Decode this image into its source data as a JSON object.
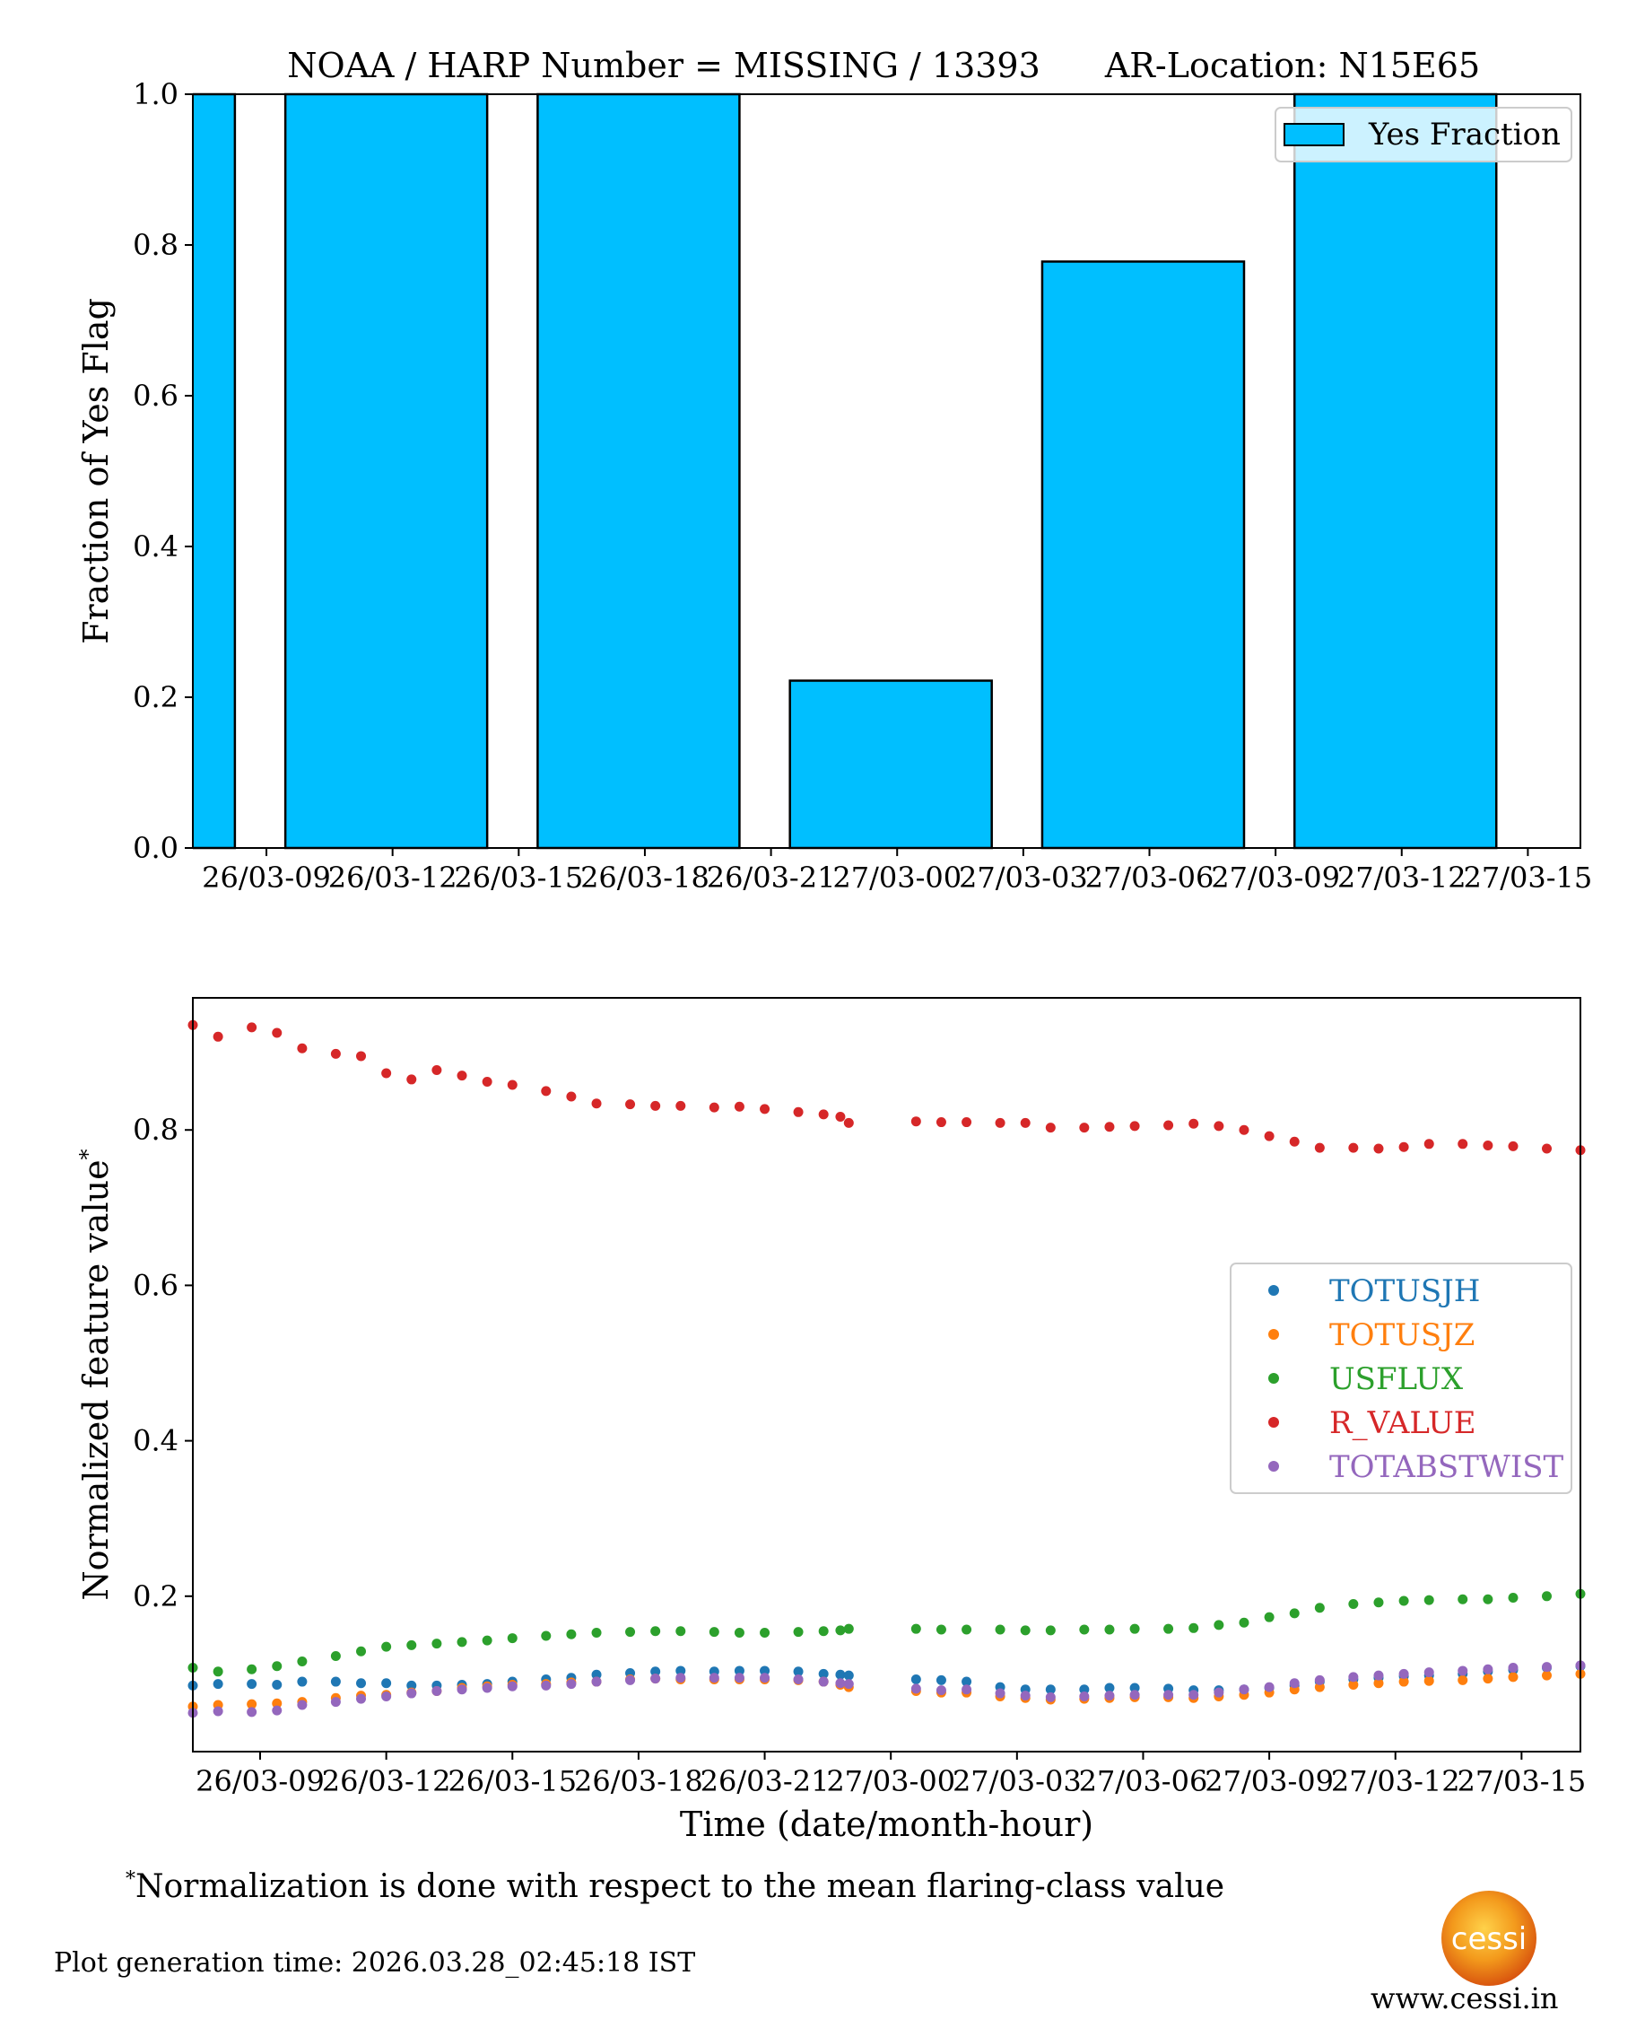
{
  "header": {
    "title_left": "NOAA / HARP Number = MISSING / 13393",
    "title_right": "AR-Location: N15E65"
  },
  "chart_data": [
    {
      "type": "bar",
      "ylabel": "Fraction of Yes Flag",
      "xlabel": "",
      "ylim": [
        0,
        1
      ],
      "xlim": [
        7.25,
        40.25
      ],
      "yticks": [
        "0.0",
        "0.2",
        "0.4",
        "0.6",
        "0.8",
        "1.0"
      ],
      "xticks": [
        {
          "hour": 9,
          "label": "26/03-09"
        },
        {
          "hour": 12,
          "label": "26/03-12"
        },
        {
          "hour": 15,
          "label": "26/03-15"
        },
        {
          "hour": 18,
          "label": "26/03-18"
        },
        {
          "hour": 21,
          "label": "26/03-21"
        },
        {
          "hour": 24,
          "label": "27/03-00"
        },
        {
          "hour": 27,
          "label": "27/03-03"
        },
        {
          "hour": 30,
          "label": "27/03-06"
        },
        {
          "hour": 33,
          "label": "27/03-09"
        },
        {
          "hour": 36,
          "label": "27/03-12"
        },
        {
          "hour": 39,
          "label": "27/03-15"
        }
      ],
      "bars": [
        {
          "start": 6.0,
          "end": 8.25,
          "value": 1.0
        },
        {
          "start": 9.45,
          "end": 14.25,
          "value": 1.0
        },
        {
          "start": 15.45,
          "end": 20.25,
          "value": 1.0
        },
        {
          "start": 21.45,
          "end": 26.25,
          "value": 0.222
        },
        {
          "start": 27.45,
          "end": 32.25,
          "value": 0.778
        },
        {
          "start": 33.45,
          "end": 38.25,
          "value": 1.0
        }
      ],
      "legend": {
        "label": "Yes Fraction",
        "position": "top-right"
      },
      "color": "#00bfff"
    },
    {
      "type": "scatter",
      "ylabel": "Normalized feature value",
      "ylabel_marker": "*",
      "xlabel": "Time (date/month-hour)",
      "ylim": [
        0.0,
        0.97
      ],
      "xlim": [
        7.4,
        40.4
      ],
      "yticks": [
        "0.2",
        "0.4",
        "0.6",
        "0.8"
      ],
      "xticks": [
        {
          "hour": 9,
          "label": "26/03-09"
        },
        {
          "hour": 12,
          "label": "26/03-12"
        },
        {
          "hour": 15,
          "label": "26/03-15"
        },
        {
          "hour": 18,
          "label": "26/03-18"
        },
        {
          "hour": 21,
          "label": "26/03-21"
        },
        {
          "hour": 24,
          "label": "27/03-00"
        },
        {
          "hour": 27,
          "label": "27/03-03"
        },
        {
          "hour": 30,
          "label": "27/03-06"
        },
        {
          "hour": 33,
          "label": "27/03-09"
        },
        {
          "hour": 36,
          "label": "27/03-12"
        },
        {
          "hour": 39,
          "label": "27/03-15"
        }
      ],
      "legend_position": "center-right",
      "x": [
        7.4,
        8.0,
        8.8,
        9.4,
        10.0,
        10.8,
        11.4,
        12.0,
        12.6,
        13.2,
        13.8,
        14.4,
        15.0,
        15.8,
        16.4,
        17.0,
        17.8,
        18.4,
        19.0,
        19.8,
        20.4,
        21.0,
        21.8,
        22.4,
        22.8,
        23.0,
        24.6,
        25.2,
        25.8,
        26.6,
        27.2,
        27.8,
        28.6,
        29.2,
        29.8,
        30.6,
        31.2,
        31.8,
        32.4,
        33.0,
        33.6,
        34.2,
        35.0,
        35.6,
        36.2,
        36.8,
        37.6,
        38.2,
        38.8,
        39.6,
        40.4
      ],
      "series": [
        {
          "name": "TOTUSJH",
          "color": "#1f77b4",
          "values": [
            0.085,
            0.087,
            0.087,
            0.086,
            0.09,
            0.09,
            0.088,
            0.088,
            0.085,
            0.085,
            0.086,
            0.087,
            0.09,
            0.093,
            0.095,
            0.099,
            0.101,
            0.103,
            0.104,
            0.103,
            0.104,
            0.104,
            0.103,
            0.1,
            0.099,
            0.098,
            0.093,
            0.092,
            0.09,
            0.083,
            0.08,
            0.08,
            0.08,
            0.082,
            0.082,
            0.081,
            0.079,
            0.079,
            0.08,
            0.082,
            0.085,
            0.09,
            0.093,
            0.095,
            0.097,
            0.098,
            0.1,
            0.103,
            0.105,
            0.108,
            0.11
          ]
        },
        {
          "name": "TOTUSJZ",
          "color": "#ff7f0e",
          "values": [
            0.058,
            0.06,
            0.061,
            0.062,
            0.064,
            0.069,
            0.072,
            0.073,
            0.076,
            0.078,
            0.082,
            0.084,
            0.086,
            0.087,
            0.089,
            0.09,
            0.093,
            0.094,
            0.093,
            0.093,
            0.093,
            0.093,
            0.092,
            0.09,
            0.086,
            0.083,
            0.078,
            0.076,
            0.076,
            0.071,
            0.069,
            0.067,
            0.068,
            0.069,
            0.07,
            0.07,
            0.069,
            0.071,
            0.073,
            0.076,
            0.08,
            0.083,
            0.086,
            0.088,
            0.09,
            0.091,
            0.092,
            0.094,
            0.096,
            0.098,
            0.1
          ]
        },
        {
          "name": "USFLUX",
          "color": "#2ca02c",
          "values": [
            0.108,
            0.103,
            0.106,
            0.11,
            0.116,
            0.123,
            0.129,
            0.135,
            0.137,
            0.139,
            0.141,
            0.143,
            0.146,
            0.149,
            0.151,
            0.153,
            0.154,
            0.155,
            0.155,
            0.154,
            0.153,
            0.153,
            0.154,
            0.155,
            0.156,
            0.158,
            0.158,
            0.157,
            0.157,
            0.157,
            0.156,
            0.156,
            0.157,
            0.157,
            0.158,
            0.158,
            0.159,
            0.163,
            0.166,
            0.173,
            0.178,
            0.185,
            0.19,
            0.192,
            0.194,
            0.195,
            0.196,
            0.196,
            0.198,
            0.2,
            0.203
          ]
        },
        {
          "name": "R_VALUE",
          "color": "#d62728",
          "values": [
            0.935,
            0.92,
            0.932,
            0.925,
            0.905,
            0.898,
            0.895,
            0.873,
            0.865,
            0.877,
            0.87,
            0.862,
            0.858,
            0.85,
            0.843,
            0.834,
            0.833,
            0.831,
            0.831,
            0.829,
            0.83,
            0.827,
            0.823,
            0.82,
            0.817,
            0.809,
            0.811,
            0.81,
            0.81,
            0.809,
            0.809,
            0.803,
            0.803,
            0.804,
            0.805,
            0.806,
            0.808,
            0.805,
            0.8,
            0.792,
            0.785,
            0.777,
            0.777,
            0.776,
            0.778,
            0.782,
            0.782,
            0.78,
            0.779,
            0.776,
            0.774
          ]
        },
        {
          "name": "TOTABSTWIST",
          "color": "#9467bd",
          "values": [
            0.05,
            0.052,
            0.051,
            0.053,
            0.06,
            0.064,
            0.068,
            0.071,
            0.075,
            0.078,
            0.08,
            0.082,
            0.084,
            0.085,
            0.087,
            0.09,
            0.092,
            0.094,
            0.095,
            0.095,
            0.095,
            0.095,
            0.093,
            0.09,
            0.088,
            0.087,
            0.081,
            0.079,
            0.08,
            0.075,
            0.072,
            0.07,
            0.071,
            0.072,
            0.073,
            0.073,
            0.073,
            0.076,
            0.08,
            0.083,
            0.088,
            0.092,
            0.096,
            0.098,
            0.1,
            0.102,
            0.104,
            0.106,
            0.108,
            0.109,
            0.111
          ]
        }
      ]
    }
  ],
  "footer": {
    "note_marker": "*",
    "note": "Normalization is done with respect to the mean flaring-class value",
    "generation_time": "Plot generation time: 2026.03.28_02:45:18 IST",
    "logo_text": "cessi",
    "website": "www.cessi.in"
  }
}
